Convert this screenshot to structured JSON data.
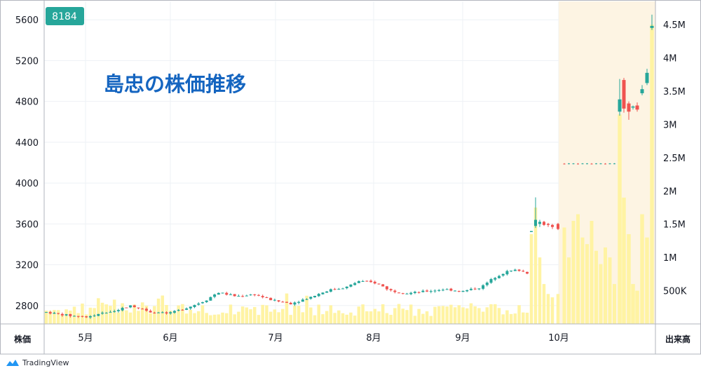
{
  "chart_data": {
    "type": "candlestick",
    "symbol": "8184",
    "title": "島忠の株価推移",
    "y_axis_label": "株価",
    "volume_axis_label": "出来高",
    "y_ticks": [
      "5600",
      "5200",
      "4800",
      "4400",
      "4000",
      "3600",
      "3200",
      "2800"
    ],
    "volume_ticks": [
      "4.5M",
      "4M",
      "3.5M",
      "3M",
      "2.5M",
      "2M",
      "1.5M",
      "1M",
      "500K"
    ],
    "x_ticks": [
      "5月",
      "6月",
      "7月",
      "8月",
      "9月",
      "10月"
    ],
    "ylim": [
      2620,
      5780
    ],
    "volume_max": 4.85,
    "volume_unit": "M",
    "price_close_approx": {
      "early_april": 2740,
      "late_april": 2700,
      "mid_may": 2780,
      "early_june": 2930,
      "late_june": 2860,
      "early_july": 2910,
      "mid_july": 3040,
      "late_july": 2930,
      "early_august": 2960,
      "late_august": 3150,
      "mid_september": 2880,
      "late_september": 2870,
      "early_october_jump": 3560,
      "october_flat_tob": 4190,
      "early_november": 4730,
      "mid_november": 5080,
      "late_november": 5520
    },
    "bull_color": "#26a69a",
    "bear_color": "#ef5350",
    "volume_color": "#fff3a3",
    "highlight_color": "#fdf4e3"
  },
  "brand": {
    "name": "TradingView"
  }
}
